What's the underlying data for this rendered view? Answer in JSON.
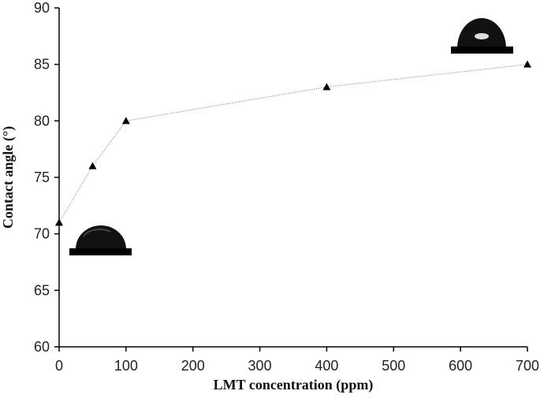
{
  "chart_data": {
    "type": "line",
    "x_label": "LMT concentration (ppm)",
    "y_label": "Contact angle (°)",
    "x": [
      0,
      50,
      100,
      400,
      700
    ],
    "series": [
      {
        "values": [
          71,
          76,
          80,
          83,
          85
        ],
        "color": "#999999",
        "marker_color": "#000000"
      }
    ],
    "xlim": [
      0,
      700
    ],
    "xticks": [
      0,
      100,
      200,
      300,
      400,
      500,
      600,
      700
    ],
    "ylim": [
      60,
      90
    ],
    "yticks": [
      60,
      65,
      70,
      75,
      80,
      85,
      90
    ],
    "grid": false
  }
}
